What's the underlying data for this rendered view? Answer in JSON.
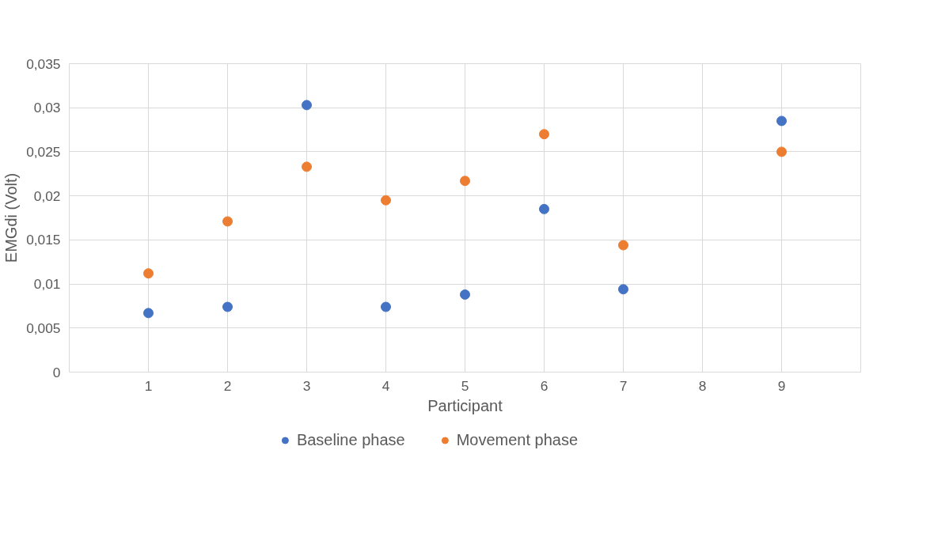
{
  "chart_data": {
    "type": "scatter",
    "xlabel": "Participant",
    "ylabel": "EMGdi (Volt)",
    "x": [
      1,
      2,
      3,
      4,
      5,
      6,
      7,
      8,
      9
    ],
    "xlim": [
      0,
      10
    ],
    "xticks": [
      1,
      2,
      3,
      4,
      5,
      6,
      7,
      8,
      9
    ],
    "ylim": [
      0,
      0.035
    ],
    "yticks": [
      0,
      {
        "value": 0.005,
        "label": "0,005"
      },
      {
        "value": 0.01,
        "label": "0,01"
      },
      {
        "value": 0.015,
        "label": "0,015"
      },
      {
        "value": 0.02,
        "label": "0,02"
      },
      {
        "value": 0.025,
        "label": "0,025"
      },
      {
        "value": 0.03,
        "label": "0,03"
      },
      {
        "value": 0.035,
        "label": "0,035"
      }
    ],
    "series": [
      {
        "name": "Baseline phase",
        "color": "#4472c4",
        "values": [
          0.0067,
          0.0074,
          0.0303,
          0.0074,
          0.0088,
          0.0185,
          0.0094,
          null,
          0.0285
        ]
      },
      {
        "name": "Movement phase",
        "color": "#ed7d31",
        "values": [
          0.0112,
          0.0171,
          0.0233,
          0.0195,
          0.0217,
          0.027,
          0.0144,
          null,
          0.025
        ]
      }
    ],
    "marker": "circle",
    "grid": true,
    "legend": "bottom"
  }
}
